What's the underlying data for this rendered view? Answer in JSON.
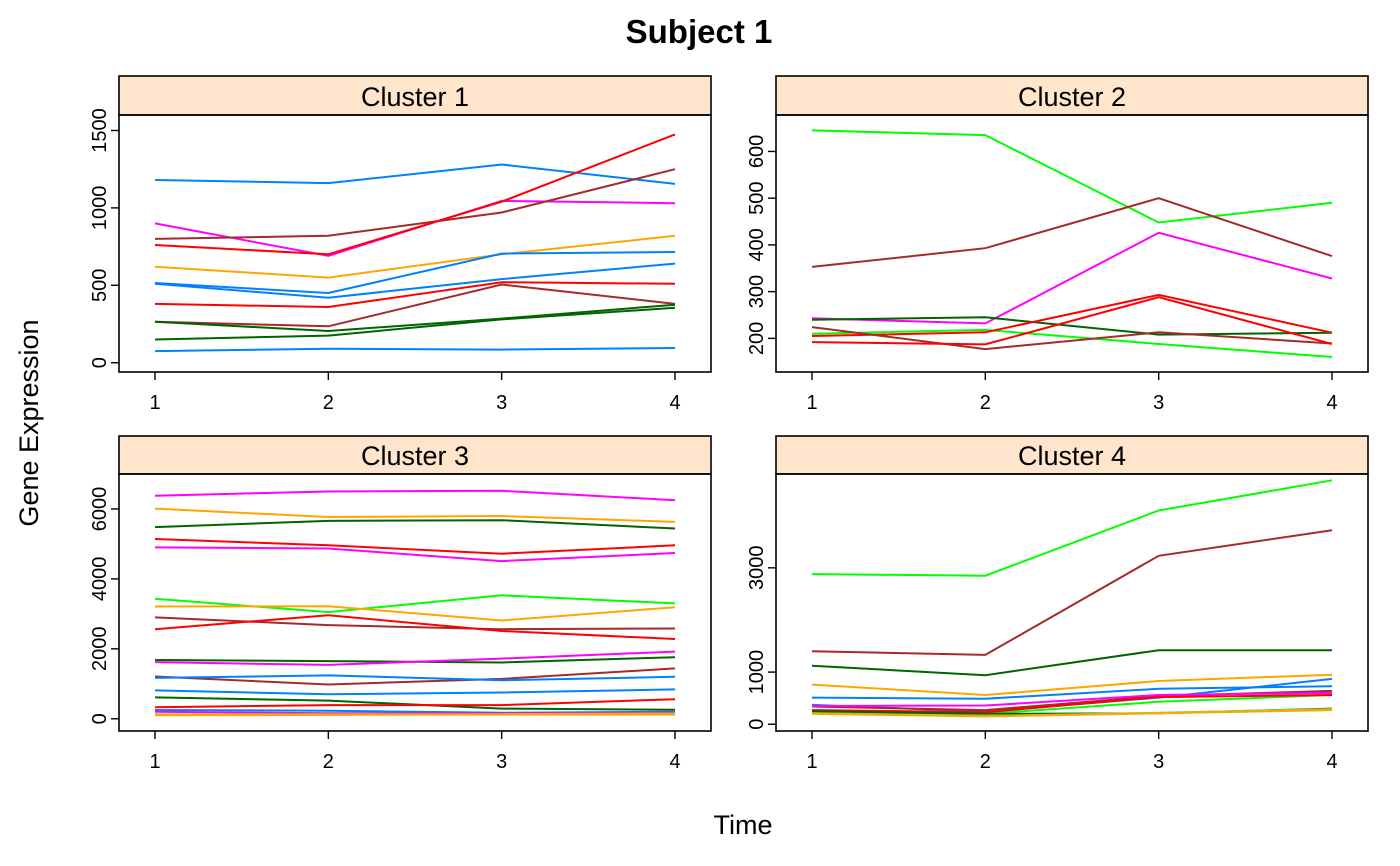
{
  "chart_data": {
    "type": "line",
    "title": "Subject 1",
    "xlabel": "Time",
    "ylabel": "Gene Expression",
    "x": [
      1,
      2,
      3,
      4
    ],
    "grid": false,
    "legend": "none",
    "panels": [
      {
        "strip": "Cluster 1",
        "ylim": [
          -60,
          1600
        ],
        "yticks": [
          0,
          500,
          1000,
          1500
        ],
        "series": [
          {
            "color": "#0080ff",
            "values": [
              1180,
              1160,
              1280,
              1155
            ]
          },
          {
            "color": "#ff00ff",
            "values": [
              900,
              690,
              1045,
              1030
            ]
          },
          {
            "color": "#a52a2a",
            "values": [
              800,
              820,
              970,
              1250
            ]
          },
          {
            "color": "#ff0000",
            "values": [
              760,
              700,
              1040,
              1475
            ]
          },
          {
            "color": "#ffa500",
            "values": [
              620,
              550,
              700,
              820
            ]
          },
          {
            "color": "#0080ff",
            "values": [
              515,
              450,
              705,
              715
            ]
          },
          {
            "color": "#0080ff",
            "values": [
              510,
              420,
              540,
              640
            ]
          },
          {
            "color": "#ff0000",
            "values": [
              380,
              360,
              520,
              510
            ]
          },
          {
            "color": "#a52a2a",
            "values": [
              265,
              235,
              505,
              380
            ]
          },
          {
            "color": "#006400",
            "values": [
              265,
              205,
              285,
              375
            ]
          },
          {
            "color": "#006400",
            "values": [
              150,
              175,
              280,
              355
            ]
          },
          {
            "color": "#0080ff",
            "values": [
              75,
              90,
              85,
              95
            ]
          }
        ]
      },
      {
        "strip": "Cluster 2",
        "ylim": [
          128,
          678
        ],
        "yticks": [
          200,
          300,
          400,
          500,
          600
        ],
        "series": [
          {
            "color": "#00ff00",
            "values": [
              645,
              635,
              448,
              490
            ]
          },
          {
            "color": "#a52a2a",
            "values": [
              353,
              393,
              500,
              376
            ]
          },
          {
            "color": "#ff00ff",
            "values": [
              243,
              232,
              426,
              328
            ]
          },
          {
            "color": "#006400",
            "values": [
              240,
              245,
              208,
              212
            ]
          },
          {
            "color": "#00ff00",
            "values": [
              210,
              218,
              188,
              160
            ]
          },
          {
            "color": "#ff0000",
            "values": [
              205,
              213,
              293,
              212
            ]
          },
          {
            "color": "#a52a2a",
            "values": [
              224,
              177,
              213,
              189
            ]
          },
          {
            "color": "#ff0000",
            "values": [
              192,
              187,
              288,
              188
            ]
          }
        ]
      },
      {
        "strip": "Cluster 3",
        "ylim": [
          -350,
          7000
        ],
        "yticks": [
          0,
          2000,
          4000,
          6000
        ],
        "series": [
          {
            "color": "#ff00ff",
            "values": [
              6380,
              6500,
              6520,
              6250
            ]
          },
          {
            "color": "#ffa500",
            "values": [
              6010,
              5770,
              5800,
              5630
            ]
          },
          {
            "color": "#006400",
            "values": [
              5480,
              5660,
              5680,
              5440
            ]
          },
          {
            "color": "#ff0000",
            "values": [
              5140,
              4960,
              4720,
              4960
            ]
          },
          {
            "color": "#ff00ff",
            "values": [
              4900,
              4870,
              4510,
              4740
            ]
          },
          {
            "color": "#00ff00",
            "values": [
              3430,
              3050,
              3530,
              3300
            ]
          },
          {
            "color": "#ffa500",
            "values": [
              3210,
              3220,
              2810,
              3190
            ]
          },
          {
            "color": "#a52a2a",
            "values": [
              2900,
              2680,
              2560,
              2580
            ]
          },
          {
            "color": "#ff0000",
            "values": [
              2560,
              2960,
              2510,
              2280
            ]
          },
          {
            "color": "#006400",
            "values": [
              1680,
              1650,
              1610,
              1760
            ]
          },
          {
            "color": "#ff00ff",
            "values": [
              1620,
              1540,
              1720,
              1920
            ]
          },
          {
            "color": "#a52a2a",
            "values": [
              1210,
              980,
              1140,
              1440
            ]
          },
          {
            "color": "#0080ff",
            "values": [
              1170,
              1240,
              1100,
              1200
            ]
          },
          {
            "color": "#0080ff",
            "values": [
              810,
              700,
              750,
              840
            ]
          },
          {
            "color": "#006400",
            "values": [
              610,
              520,
              290,
              260
            ]
          },
          {
            "color": "#ff0000",
            "values": [
              330,
              390,
              390,
              560
            ]
          },
          {
            "color": "#0080ff",
            "values": [
              250,
              230,
              170,
              200
            ]
          },
          {
            "color": "#ff00ff",
            "values": [
              200,
              160,
              160,
              180
            ]
          },
          {
            "color": "#9acd32",
            "values": [
              130,
              130,
              130,
              150
            ]
          },
          {
            "color": "#ffa500",
            "values": [
              100,
              110,
              120,
              120
            ]
          }
        ]
      },
      {
        "strip": "Cluster 4",
        "ylim": [
          -130,
          4800
        ],
        "yticks": [
          0,
          1000,
          3000
        ],
        "series": [
          {
            "color": "#00ff00",
            "values": [
              2880,
              2850,
              4100,
              4680
            ]
          },
          {
            "color": "#a52a2a",
            "values": [
              1400,
              1330,
              3230,
              3720
            ]
          },
          {
            "color": "#006400",
            "values": [
              1120,
              940,
              1420,
              1420
            ]
          },
          {
            "color": "#ffa500",
            "values": [
              760,
              560,
              830,
              950
            ]
          },
          {
            "color": "#0080ff",
            "values": [
              510,
              490,
              680,
              730
            ]
          },
          {
            "color": "#0080ff",
            "values": [
              370,
              240,
              510,
              870
            ]
          },
          {
            "color": "#a52a2a",
            "values": [
              340,
              270,
              540,
              640
            ]
          },
          {
            "color": "#ff00ff",
            "values": [
              350,
              360,
              560,
              600
            ]
          },
          {
            "color": "#00ff00",
            "values": [
              230,
              200,
              430,
              560
            ]
          },
          {
            "color": "#ff0000",
            "values": [
              270,
              230,
              520,
              560
            ]
          },
          {
            "color": "#006400",
            "values": [
              250,
              200,
              210,
              300
            ]
          },
          {
            "color": "#9acd32",
            "values": [
              210,
              160,
              220,
              290
            ]
          },
          {
            "color": "#ffa500",
            "values": [
              200,
              150,
              210,
              270
            ]
          }
        ]
      }
    ]
  }
}
